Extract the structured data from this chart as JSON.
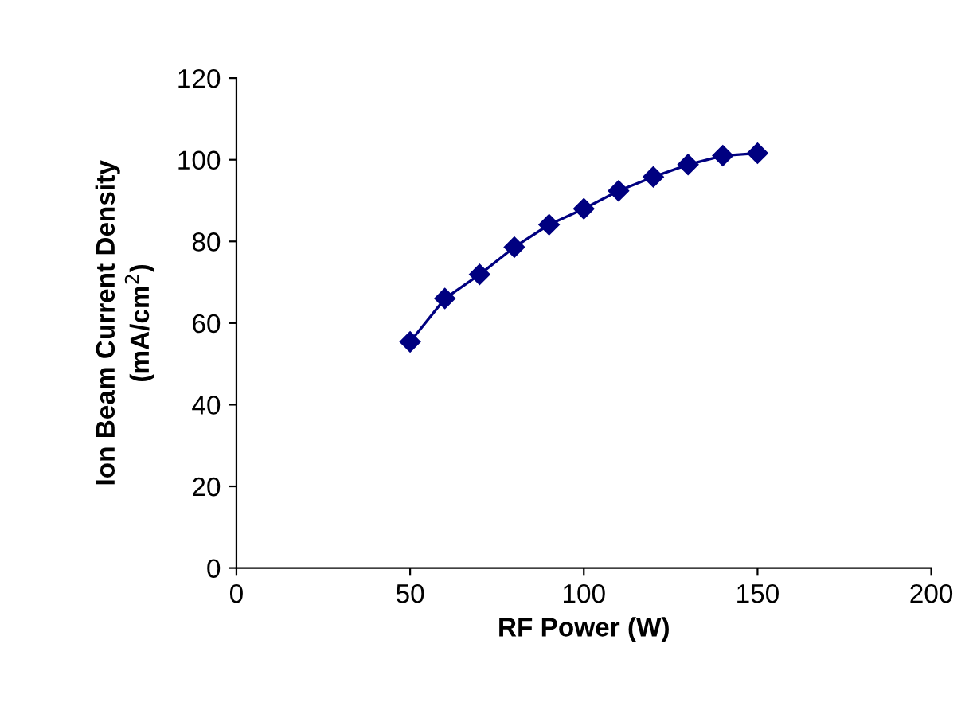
{
  "chart_data": {
    "type": "line",
    "xlabel": "RF Power (W)",
    "ylabel": "Ion Beam Current Density\n(mA/cm$^{2}$)",
    "x": [
      50,
      60,
      70,
      80,
      90,
      100,
      110,
      120,
      130,
      140,
      150
    ],
    "series": [
      {
        "color": "#000080",
        "values": [
          55.4,
          66.0,
          71.9,
          78.6,
          84.1,
          88.0,
          92.4,
          95.8,
          98.8,
          101.0,
          101.6
        ]
      }
    ],
    "xlim": [
      0,
      200
    ],
    "xticks": [
      0,
      50,
      100,
      150,
      200
    ],
    "ylim": [
      0,
      120
    ],
    "yticks": [
      0,
      20,
      40,
      60,
      80,
      100,
      120
    ],
    "marker": "diamond",
    "line_style": "solid",
    "grid": false,
    "legend": false
  }
}
